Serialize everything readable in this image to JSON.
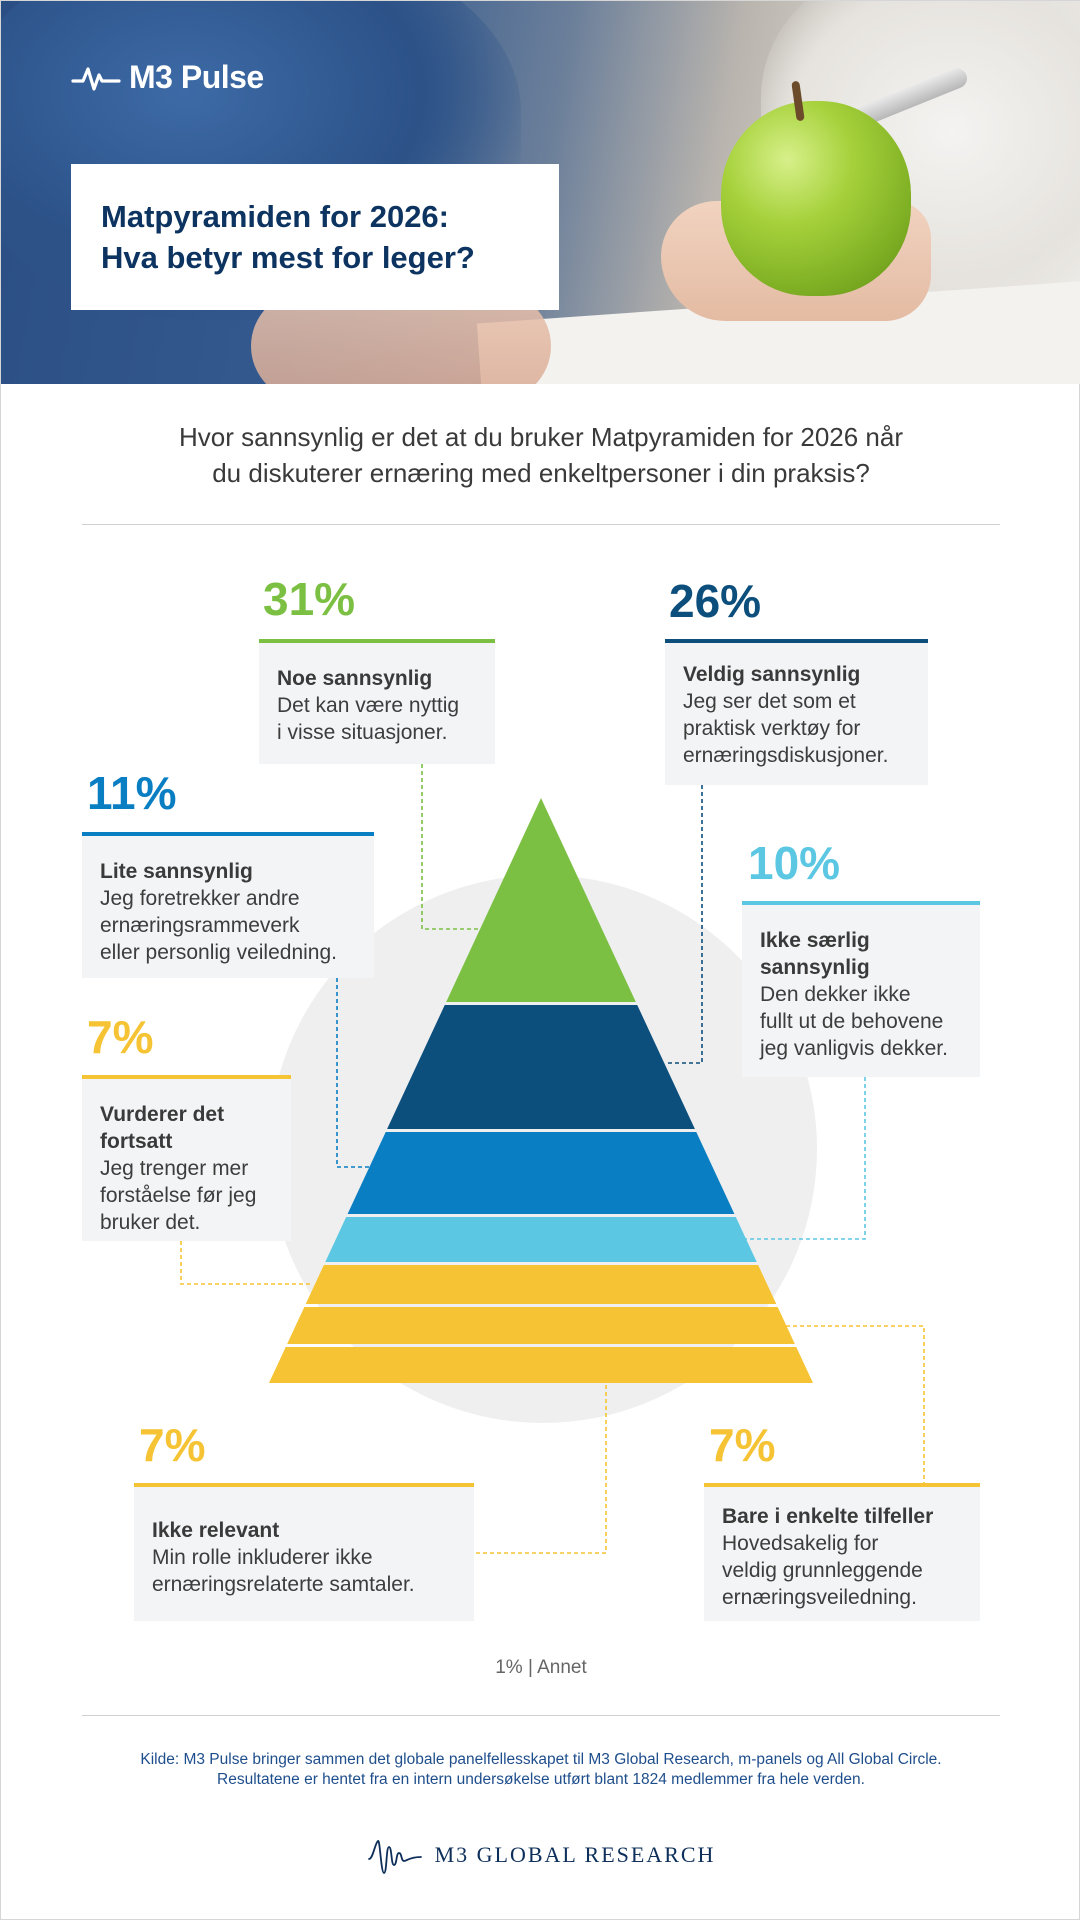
{
  "header": {
    "brand": "M3 Pulse",
    "title_line1": "Matpyramiden for 2026:",
    "title_line2": "Hva betyr mest for leger?"
  },
  "question": {
    "line1": "Hvor sannsynlig er det at du bruker Matpyramiden for 2026 når",
    "line2": "du diskuterer ernæring med enkeltpersoner i din praksis?"
  },
  "colors": {
    "green": "#7bc043",
    "navy": "#0d4f7c",
    "blue": "#0a7ec2",
    "cyan": "#5bc7e3",
    "yellow": "#f5c333"
  },
  "chart_data": {
    "type": "pyramid",
    "slices": [
      {
        "pct": "31%",
        "value": 31,
        "title": "Noe sannsynlig",
        "desc": [
          "Det kan være nyttig",
          "i visse situasjoner."
        ],
        "color": "#7bc043"
      },
      {
        "pct": "26%",
        "value": 26,
        "title": "Veldig sannsynlig",
        "desc": [
          "Jeg ser det som et",
          "praktisk verktøy for",
          "ernæringsdiskusjoner."
        ],
        "color": "#0d4f7c"
      },
      {
        "pct": "11%",
        "value": 11,
        "title": "Lite sannsynlig",
        "desc": [
          "Jeg foretrekker andre",
          "ernæringsrammeverk",
          "eller personlig veiledning."
        ],
        "color": "#0a7ec2"
      },
      {
        "pct": "10%",
        "value": 10,
        "title": "Ikke særlig sannsynlig",
        "title_lines": [
          "Ikke særlig",
          "sannsynlig"
        ],
        "desc": [
          "Den dekker ikke",
          "fullt ut de behovene",
          "jeg vanligvis dekker."
        ],
        "color": "#5bc7e3"
      },
      {
        "pct": "7%",
        "value": 7,
        "title": "Vurderer det fortsatt",
        "title_lines": [
          "Vurderer det",
          "fortsatt"
        ],
        "desc": [
          "Jeg trenger mer",
          "forståelse før jeg",
          "bruker det."
        ],
        "color": "#f5c333"
      },
      {
        "pct": "7%",
        "value": 7,
        "title": "Bare i enkelte tilfeller",
        "desc": [
          "Hovedsakelig for",
          "veldig grunnleggende",
          "ernæringsveiledning."
        ],
        "color": "#f5c333"
      },
      {
        "pct": "7%",
        "value": 7,
        "title": "Ikke relevant",
        "desc": [
          "Min rolle inkluderer ikke",
          "ernæringsrelaterte samtaler."
        ],
        "color": "#f5c333"
      }
    ],
    "other": "1% | Annet"
  },
  "footer": {
    "source_line1": "Kilde: M3 Pulse bringer sammen det globale panelfellesskapet til M3 Global Research, m-panels og All Global Circle.",
    "source_line2": "Resultatene er hentet fra en intern undersøkelse utført blant 1824 medlemmer fra hele verden.",
    "logo_text": "M3  GLOBAL RESEARCH"
  }
}
